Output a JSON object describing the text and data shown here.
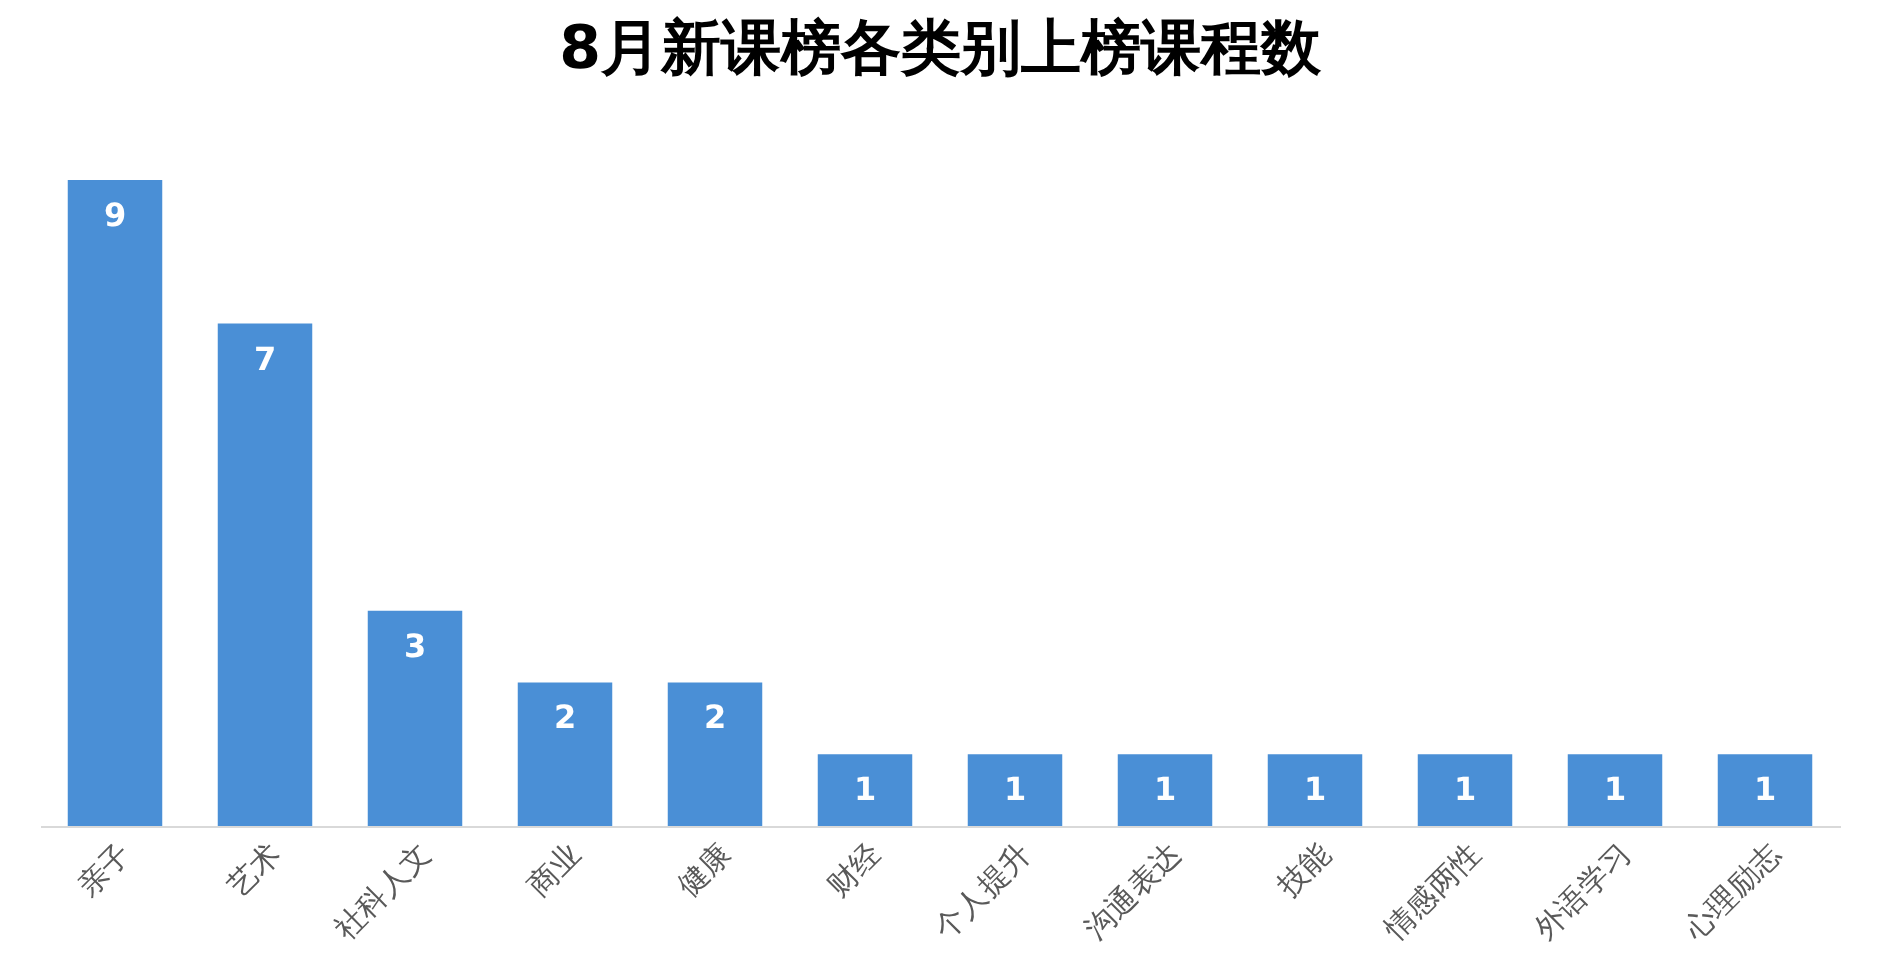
{
  "chart_data": {
    "type": "bar",
    "title": "8月新课榜各类别上榜课程数",
    "categories": [
      "亲子",
      "艺术",
      "社科人文",
      "商业",
      "健康",
      "财经",
      "个人提升",
      "沟通表达",
      "技能",
      "情感两性",
      "外语学习",
      "心理励志"
    ],
    "values": [
      9,
      7,
      3,
      2,
      2,
      1,
      1,
      1,
      1,
      1,
      1,
      1
    ],
    "color": "#4a8fd6",
    "data_labels": true,
    "tick_labels": "x"
  }
}
